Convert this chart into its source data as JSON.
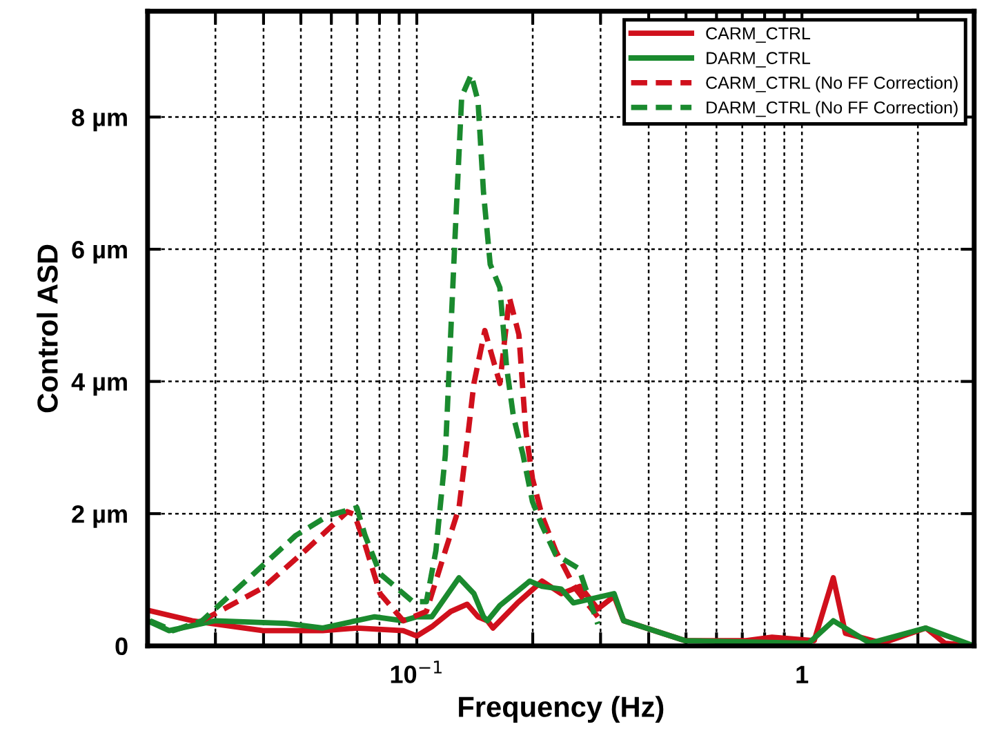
{
  "chart_data": {
    "type": "line",
    "xlabel": "Frequency (Hz)",
    "ylabel": "Control ASD",
    "log": "x",
    "xlim": [
      0.02,
      2.8
    ],
    "ylim": [
      0,
      9.6
    ],
    "xticks": [
      {
        "value": 0.02,
        "label": null
      },
      {
        "value": 0.03,
        "label": null
      },
      {
        "value": 0.04,
        "label": null
      },
      {
        "value": 0.05,
        "label": null
      },
      {
        "value": 0.06,
        "label": null
      },
      {
        "value": 0.07,
        "label": null
      },
      {
        "value": 0.08,
        "label": null
      },
      {
        "value": 0.09,
        "label": null
      },
      {
        "value": 0.1,
        "label": "10$^{−1}$"
      },
      {
        "value": 0.2,
        "label": null
      },
      {
        "value": 0.3,
        "label": null
      },
      {
        "value": 0.4,
        "label": null
      },
      {
        "value": 0.5,
        "label": null
      },
      {
        "value": 0.6,
        "label": null
      },
      {
        "value": 0.7,
        "label": null
      },
      {
        "value": 0.8,
        "label": null
      },
      {
        "value": 0.9,
        "label": null
      },
      {
        "value": 1,
        "label": "1"
      },
      {
        "value": 2,
        "label": null
      }
    ],
    "yticks": [
      0,
      {
        "value": 2,
        "label": "2 µm"
      },
      {
        "value": 4,
        "label": "4 µm"
      },
      {
        "value": 6,
        "label": "6 µm"
      },
      {
        "value": 8,
        "label": "8 µm"
      }
    ],
    "grid": true,
    "legend": "top right",
    "series": [
      {
        "name": "CARM_CTRL",
        "color": "#d0101c",
        "line_style": "solid",
        "x": [
          0.02,
          0.0261,
          0.0399,
          0.057,
          0.0699,
          0.0922,
          0.1,
          0.1094,
          0.1225,
          0.1351,
          0.1442,
          0.1526,
          0.1577,
          0.1826,
          0.2114,
          0.237,
          0.2655,
          0.2951,
          0.3253,
          0.3444,
          0.4966,
          0.716,
          0.836,
          1.076,
          1.206,
          1.297,
          1.616,
          2.097,
          2.35,
          2.8
        ],
        "values": [
          0.54,
          0.38,
          0.23,
          0.23,
          0.27,
          0.23,
          0.15,
          0.29,
          0.52,
          0.63,
          0.44,
          0.38,
          0.27,
          0.65,
          0.98,
          0.79,
          0.9,
          0.56,
          0.75,
          0.38,
          0.08,
          0.08,
          0.13,
          0.08,
          1.03,
          0.19,
          0.04,
          0.27,
          0.04,
          0
        ]
      },
      {
        "name": "DARM_CTRL",
        "color": "#1a8a2e",
        "line_style": "solid",
        "x": [
          0.02,
          0.02275,
          0.03,
          0.0458,
          0.057,
          0.0777,
          0.0922,
          0.1,
          0.1094,
          0.1287,
          0.1407,
          0.149,
          0.1526,
          0.1643,
          0.1965,
          0.2114,
          0.237,
          0.255,
          0.3253,
          0.3444,
          0.4966,
          1.041,
          1.206,
          1.502,
          2.097,
          2.8
        ],
        "values": [
          0.38,
          0.23,
          0.38,
          0.34,
          0.27,
          0.44,
          0.38,
          0.44,
          0.44,
          1.03,
          0.79,
          0.44,
          0.38,
          0.61,
          0.98,
          0.9,
          0.86,
          0.65,
          0.79,
          0.38,
          0.08,
          0.04,
          0.38,
          0.04,
          0.27,
          0
        ]
      },
      {
        "name": "CARM_CTRL (No FF Correction)",
        "color": "#d0101c",
        "line_style": "dashed",
        "x": [
          0.0277,
          0.0399,
          0.0513,
          0.066,
          0.0688,
          0.0734,
          0.0803,
          0.0922,
          0.1059,
          0.1186,
          0.1287,
          0.1362,
          0.1407,
          0.1502,
          0.1643,
          0.1739,
          0.1841,
          0.1918,
          0.1997,
          0.2114,
          0.2294,
          0.2571,
          0.2951
        ],
        "values": [
          0.38,
          0.88,
          1.44,
          2.03,
          1.99,
          1.53,
          0.79,
          0.38,
          0.52,
          1.44,
          2.09,
          3.26,
          3.97,
          4.77,
          3.97,
          5.27,
          4.71,
          3.26,
          2.53,
          1.97,
          1.44,
          0.88,
          0.44
        ]
      },
      {
        "name": "DARM_CTRL (No FF Correction)",
        "color": "#1a8a2e",
        "line_style": "dashed",
        "x": [
          0.0203,
          0.0233,
          0.0277,
          0.0377,
          0.0485,
          0.0589,
          0.0699,
          0.0734,
          0.0803,
          0.0976,
          0.1059,
          0.1121,
          0.1186,
          0.1256,
          0.1308,
          0.1384,
          0.1442,
          0.149,
          0.1551,
          0.1643,
          0.1711,
          0.1782,
          0.1887,
          0.1997,
          0.2114,
          0.2294,
          0.2634,
          0.2951
        ],
        "values": [
          0.38,
          0.23,
          0.38,
          1.09,
          1.67,
          1.97,
          2.09,
          1.67,
          1.09,
          0.67,
          0.67,
          1.44,
          2.89,
          6.15,
          8.31,
          8.64,
          8.24,
          6.86,
          5.77,
          5.42,
          4.21,
          3.47,
          2.89,
          2.18,
          1.82,
          1.38,
          1.17,
          0.33
        ]
      }
    ]
  }
}
